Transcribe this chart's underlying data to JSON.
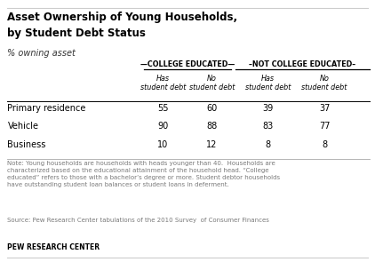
{
  "title_line1": "Asset Ownership of Young Households,",
  "title_line2": "by Student Debt Status",
  "subtitle": "% owning asset",
  "col_group1_label": "—COLLEGE EDUCATED—",
  "col_group2_label": "–NOT COLLEGE EDUCATED–",
  "col_headers": [
    "Has\nstudent debt",
    "No\nstudent debt",
    "Has\nstudent debt",
    "No\nstudent debt"
  ],
  "row_labels": [
    "Primary residence",
    "Vehicle",
    "Business"
  ],
  "data": [
    [
      55,
      60,
      39,
      37
    ],
    [
      90,
      88,
      83,
      77
    ],
    [
      10,
      12,
      8,
      8
    ]
  ],
  "note_text": "Note: Young households are households with heads younger than 40.  Households are\ncharacterized based on the educational attainment of the household head. “College\neducated” refers to those with a bachelor’s degree or more. Student debtor households\nhave outstanding student loan balances or student loans in deferment.",
  "source_text": "Source: Pew Research Center tabulations of the 2010 Survey  of Consumer Finances",
  "footer_text": "PEW RESEARCH CENTER",
  "bg_color": "#ffffff",
  "note_color": "#7a7a7a",
  "source_color": "#7a7a7a"
}
